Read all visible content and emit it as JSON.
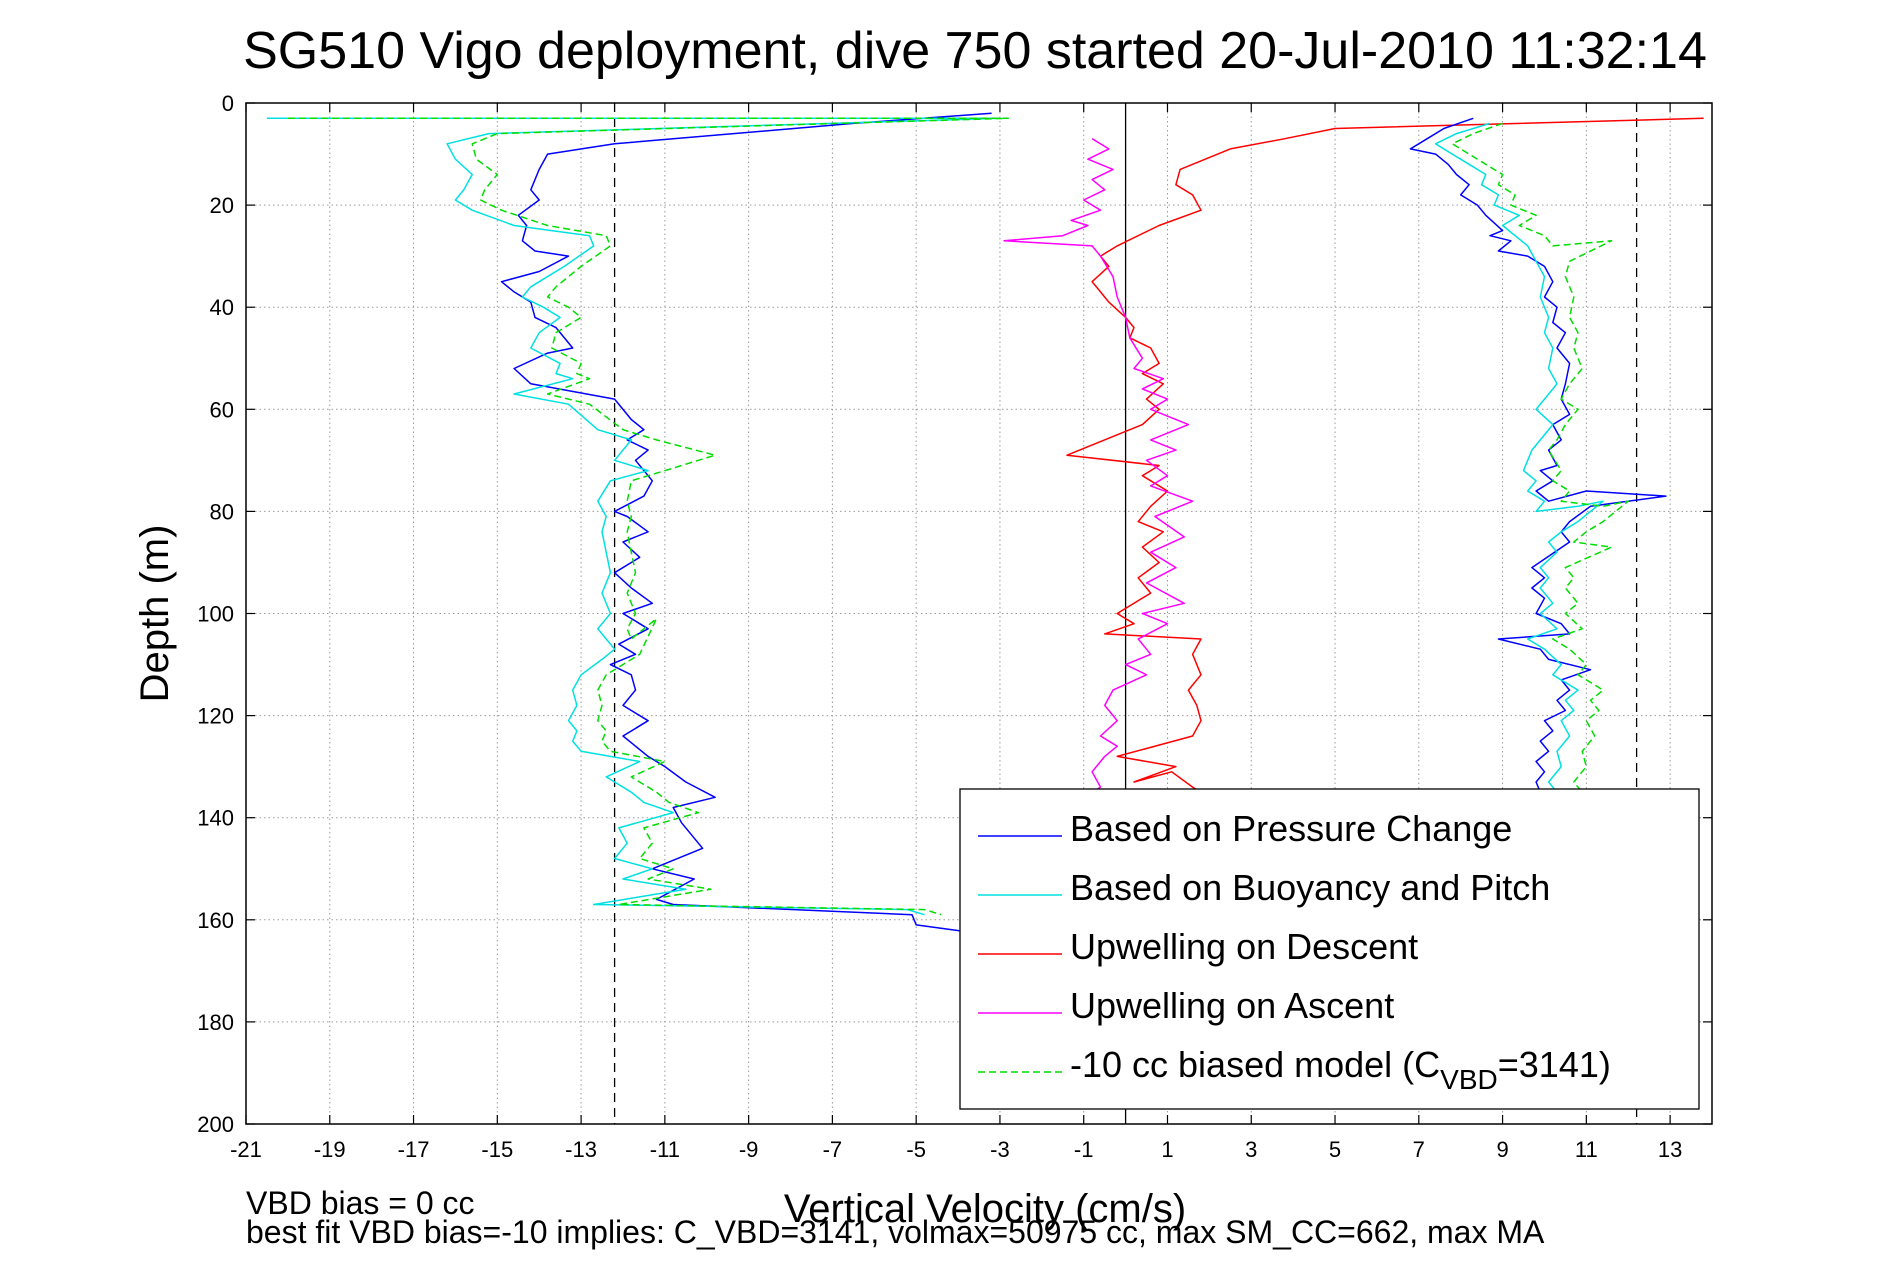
{
  "chart_data": {
    "type": "line",
    "title": "SG510 Vigo deployment, dive 750 started 20-Jul-2010 11:32:14",
    "xlabel": "Vertical Velocity (cm/s)",
    "ylabel": "Depth (m)",
    "xlim": [
      -21,
      14
    ],
    "ylim": [
      0,
      200
    ],
    "y_reversed": true,
    "xticks": [
      -21,
      -19,
      -17,
      -15,
      -13,
      -11,
      -9,
      -7,
      -5,
      -3,
      -1,
      1,
      3,
      5,
      7,
      9,
      11,
      13
    ],
    "yticks": [
      0,
      20,
      40,
      60,
      80,
      100,
      120,
      140,
      160,
      180,
      200
    ],
    "grid": true,
    "legend_position": "bottom-right",
    "reference_lines": [
      {
        "x": 0,
        "style": "solid",
        "color": "#000000"
      },
      {
        "x": -12.2,
        "style": "dashed",
        "color": "#000000"
      },
      {
        "x": 12.2,
        "style": "dashed",
        "color": "#000000"
      }
    ],
    "series": [
      {
        "name": "Based on Pressure Change",
        "color": "#0000ff",
        "dash": "solid",
        "x": [
          -3.2,
          -6.5,
          -12.2,
          -13.8,
          -14.0,
          -14.2,
          -14.0,
          -14.5,
          -14.3,
          -14.4,
          -14.1,
          -13.3,
          -14.0,
          -14.9,
          -14.6,
          -14.2,
          -14.1,
          -13.6,
          -13.2,
          -13.8,
          -14.6,
          -14.2,
          -12.2,
          -11.8,
          -11.5,
          -11.9,
          -11.4,
          -11.7,
          -11.3,
          -11.5,
          -12.2,
          -11.9,
          -11.4,
          -12.0,
          -11.6,
          -12.2,
          -11.8,
          -11.3,
          -12.0,
          -11.4,
          -12.1,
          -11.7,
          -12.3,
          -11.8,
          -11.7,
          -12.0,
          -11.4,
          -12.0,
          -11.4,
          -11.0,
          -10.5,
          -9.8,
          -10.8,
          -10.6,
          -10.1,
          -11.3,
          -10.3,
          -11.2,
          -10.8,
          -5.1,
          -5.0,
          -3.2
        ],
        "y": [
          2,
          4,
          8,
          10,
          13,
          17,
          19,
          22,
          24,
          27,
          29,
          30,
          33,
          35,
          37,
          39,
          42,
          44,
          48,
          49,
          52,
          55,
          58,
          62,
          64,
          66,
          68,
          70,
          74,
          77,
          80,
          81,
          84,
          86,
          89,
          92,
          95,
          98,
          100,
          103,
          106,
          108,
          110,
          112,
          115,
          118,
          121,
          124,
          128,
          130,
          133,
          136,
          138,
          141,
          146,
          150,
          152,
          156,
          157,
          159,
          161,
          163
        ]
      },
      {
        "name": "Based on Buoyancy and Pitch",
        "color": "#00e0e0",
        "dash": "solid",
        "x": [
          -20.5,
          -3.0,
          -15.2,
          -16.2,
          -16.0,
          -15.6,
          -15.8,
          -16.0,
          -15.6,
          -14.6,
          -12.8,
          -12.7,
          -13.4,
          -14.2,
          -14.4,
          -13.9,
          -13.5,
          -14.0,
          -14.2,
          -13.5,
          -13.6,
          -13.2,
          -14.6,
          -13.3,
          -12.6,
          -11.8,
          -12.2,
          -11.4,
          -12.3,
          -12.6,
          -12.4,
          -12.5,
          -12.4,
          -12.3,
          -12.5,
          -12.3,
          -12.6,
          -12.4,
          -12.2,
          -12.5,
          -13.0,
          -13.2,
          -13.1,
          -13.3,
          -13.1,
          -13.2,
          -13.0,
          -11.6,
          -12.4,
          -11.8,
          -11.5,
          -10.8,
          -12.1,
          -11.9,
          -12.2,
          -11.3,
          -12.0,
          -10.5,
          -12.7,
          -5.2,
          -4.8
        ],
        "y": [
          3,
          3,
          6,
          8,
          11,
          14,
          17,
          19,
          21,
          24,
          26,
          28,
          32,
          36,
          38,
          40,
          42,
          45,
          48,
          51,
          53,
          54,
          57,
          59,
          64,
          66,
          70,
          72,
          74,
          78,
          81,
          84,
          88,
          92,
          96,
          100,
          103,
          105,
          107,
          109,
          112,
          115,
          118,
          121,
          123,
          125,
          127,
          129,
          132,
          135,
          137,
          139,
          142,
          145,
          148,
          150,
          152,
          154,
          157,
          158,
          159
        ]
      },
      {
        "name": "Upwelling on Descent",
        "color": "#ff0000",
        "dash": "solid",
        "x": [
          13.8,
          5.0,
          3.8,
          2.5,
          1.3,
          1.2,
          1.6,
          1.8,
          0.8,
          -0.2,
          -0.6,
          -0.4,
          -0.8,
          -0.6,
          -0.4,
          0.0,
          0.2,
          0.1,
          0.6,
          0.8,
          0.4,
          0.9,
          0.5,
          0.8,
          0.4,
          -1.4,
          0.8,
          0.4,
          1.0,
          0.6,
          0.3,
          0.9,
          0.4,
          0.8,
          0.3,
          0.6,
          -0.2,
          0.2,
          -0.5,
          1.8,
          1.6,
          1.8,
          1.5,
          1.7,
          1.8,
          1.6,
          -0.2,
          1.2,
          0.2,
          1.1,
          1.6,
          2.0
        ],
        "y": [
          3,
          5,
          7,
          9,
          13,
          16,
          18,
          21,
          24,
          28,
          30,
          32,
          35,
          37,
          39,
          42,
          44,
          46,
          48,
          51,
          53,
          55,
          58,
          60,
          63,
          69,
          71,
          73,
          76,
          79,
          82,
          84,
          87,
          90,
          93,
          96,
          100,
          102,
          104,
          105,
          108,
          112,
          115,
          118,
          121,
          124,
          128,
          130,
          133,
          131,
          134,
          136
        ]
      },
      {
        "name": "Upwelling on Ascent",
        "color": "#ff00ff",
        "dash": "solid",
        "x": [
          -0.8,
          -0.4,
          -0.9,
          -0.3,
          -0.8,
          -0.5,
          -1.0,
          -0.6,
          -1.3,
          -0.9,
          -1.5,
          -2.9,
          -0.8,
          -0.6,
          -0.3,
          -0.2,
          0.0,
          0.1,
          0.4,
          0.2,
          0.9,
          0.4,
          1.0,
          0.6,
          1.5,
          0.6,
          1.2,
          0.5,
          1.0,
          0.6,
          1.6,
          0.7,
          1.4,
          0.6,
          1.2,
          0.5,
          1.4,
          0.4,
          1.0,
          0.3,
          0.6,
          0.0,
          0.5,
          -0.3,
          -0.5,
          -0.2,
          -0.6,
          -0.2,
          -0.5,
          -0.8,
          -0.6,
          -1.0
        ],
        "y": [
          7,
          9,
          11,
          13,
          15,
          17,
          19,
          21,
          23,
          24,
          26,
          27,
          28,
          30,
          34,
          38,
          42,
          46,
          50,
          52,
          54,
          56,
          58,
          60,
          63,
          66,
          68,
          70,
          73,
          75,
          78,
          81,
          85,
          88,
          91,
          94,
          98,
          100,
          102,
          105,
          108,
          110,
          112,
          115,
          118,
          121,
          124,
          126,
          128,
          131,
          134,
          136
        ]
      },
      {
        "name": "-10 cc biased model (C_VBD=3141)",
        "color": "#00dd00",
        "dash": "dashed",
        "x": [
          -20.0,
          -2.8,
          -15.0,
          -15.6,
          -15.5,
          -15.0,
          -15.3,
          -15.4,
          -14.9,
          -13.8,
          -12.4,
          -12.3,
          -13.0,
          -13.6,
          -13.8,
          -13.3,
          -13.0,
          -13.6,
          -13.7,
          -13.0,
          -13.1,
          -12.8,
          -13.8,
          -12.8,
          -12.0,
          -11.2,
          -9.8,
          -11.0,
          -11.8,
          -11.9,
          -11.8,
          -11.9,
          -11.8,
          -11.7,
          -11.9,
          -11.7,
          -11.9,
          -11.8,
          -11.2,
          -11.6,
          -12.4,
          -12.6,
          -12.5,
          -12.6,
          -12.4,
          -12.5,
          -12.3,
          -11.0,
          -11.8,
          -11.2,
          -10.9,
          -10.2,
          -11.5,
          -11.3,
          -11.6,
          -10.8,
          -11.4,
          -9.9,
          -12.1,
          -4.8,
          -4.4
        ],
        "y": [
          3,
          3,
          6,
          8,
          11,
          14,
          17,
          19,
          21,
          24,
          26,
          28,
          32,
          36,
          38,
          40,
          42,
          45,
          48,
          51,
          53,
          54,
          57,
          59,
          64,
          66,
          69,
          72,
          74,
          78,
          81,
          84,
          88,
          92,
          96,
          100,
          103,
          105,
          101,
          108,
          112,
          115,
          118,
          121,
          123,
          125,
          127,
          129,
          132,
          135,
          137,
          139,
          142,
          145,
          148,
          150,
          152,
          154,
          157,
          158,
          159
        ]
      },
      {
        "name": "",
        "color": "#0000ff",
        "dash": "solid",
        "x": [
          8.3,
          7.6,
          7.2,
          6.8,
          7.4,
          7.7,
          7.9,
          8.2,
          8.0,
          8.4,
          8.6,
          9.0,
          8.7,
          9.2,
          8.9,
          9.6,
          10.0,
          10.2,
          10.0,
          10.3,
          10.2,
          10.5,
          10.3,
          10.6,
          10.5,
          10.4,
          10.6,
          10.2,
          10.4,
          10.1,
          10.3,
          9.9,
          10.2,
          9.8,
          10.1,
          11.0,
          12.9,
          11.1,
          10.6,
          10.4,
          10.6,
          9.7,
          10.0,
          9.7,
          10.0,
          9.8,
          10.4,
          10.6,
          8.9,
          9.9,
          10.1,
          11.1,
          10.4,
          10.6,
          10.3,
          10.5,
          10.0,
          10.2,
          9.9,
          10.1,
          9.8,
          10.0,
          9.8,
          9.9,
          9.6
        ],
        "y": [
          3,
          5,
          7,
          9,
          10,
          12,
          14,
          16,
          18,
          20,
          22,
          25,
          26,
          27,
          29,
          30,
          32,
          35,
          38,
          40,
          43,
          45,
          48,
          51,
          55,
          58,
          61,
          63,
          66,
          68,
          71,
          72,
          74,
          76,
          78,
          76,
          77,
          79,
          82,
          84,
          86,
          91,
          93,
          95,
          97,
          100,
          102,
          104,
          105,
          107,
          109,
          111,
          113,
          115,
          117,
          119,
          121,
          123,
          125,
          127,
          129,
          131,
          133,
          135,
          137
        ]
      },
      {
        "name": "",
        "color": "#00e0e0",
        "dash": "solid",
        "x": [
          8.7,
          7.9,
          7.4,
          7.8,
          8.2,
          8.6,
          8.5,
          8.9,
          8.8,
          9.4,
          9.0,
          9.6,
          9.8,
          10.0,
          9.9,
          10.1,
          10.0,
          10.2,
          10.1,
          10.3,
          10.0,
          9.8,
          10.2,
          9.9,
          9.7,
          9.5,
          9.8,
          9.6,
          10.0,
          9.8,
          10.8,
          11.4,
          10.8,
          10.4,
          10.1,
          10.3,
          9.9,
          10.1,
          9.9,
          10.2,
          9.9,
          10.3,
          9.6,
          10.0,
          10.4,
          10.2,
          10.8,
          10.5,
          10.7,
          10.4,
          10.6,
          10.3,
          10.4,
          10.1,
          10.3,
          10.0
        ],
        "y": [
          4,
          6,
          8,
          10,
          12,
          14,
          16,
          18,
          20,
          22,
          24,
          28,
          31,
          34,
          38,
          42,
          45,
          48,
          52,
          55,
          58,
          60,
          63,
          66,
          68,
          72,
          74,
          76,
          78,
          80,
          79,
          78,
          82,
          84,
          86,
          88,
          91,
          93,
          95,
          98,
          100,
          103,
          105,
          107,
          110,
          112,
          115,
          117,
          119,
          121,
          124,
          127,
          130,
          133,
          135,
          137
        ]
      },
      {
        "name": "",
        "color": "#00dd00",
        "dash": "dashed",
        "x": [
          9.0,
          8.3,
          7.8,
          8.2,
          8.6,
          9.0,
          8.9,
          9.3,
          9.2,
          9.8,
          9.4,
          10.0,
          10.2,
          11.6,
          10.6,
          10.5,
          10.7,
          10.6,
          10.8,
          10.7,
          10.9,
          10.6,
          10.4,
          10.8,
          10.5,
          10.3,
          10.1,
          10.4,
          10.2,
          10.6,
          10.4,
          11.4,
          12.0,
          11.4,
          11.0,
          10.7,
          11.6,
          10.5,
          10.7,
          10.5,
          10.8,
          10.5,
          10.9,
          10.2,
          10.6,
          11.0,
          10.8,
          11.4,
          11.1,
          11.3,
          11.0,
          11.2,
          10.9,
          11.0,
          10.7,
          10.9,
          10.6
        ],
        "y": [
          4,
          6,
          8,
          10,
          12,
          14,
          16,
          18,
          20,
          22,
          24,
          26,
          28,
          27,
          31,
          34,
          38,
          42,
          45,
          48,
          52,
          55,
          58,
          60,
          63,
          66,
          68,
          72,
          74,
          76,
          78,
          79,
          78,
          82,
          84,
          86,
          87,
          91,
          93,
          95,
          98,
          100,
          103,
          105,
          107,
          110,
          112,
          115,
          117,
          119,
          121,
          124,
          127,
          130,
          133,
          135,
          137
        ]
      }
    ],
    "annotations": [
      "VBD bias = 0 cc",
      "best fit VBD bias=-10 implies: C_VBD=3141, volmax=50975 cc, max SM_CC=662, max MA"
    ]
  },
  "legend": {
    "items": [
      {
        "label": "Based on Pressure Change",
        "color": "#0000ff",
        "dash": "solid"
      },
      {
        "label": "Based on Buoyancy and Pitch",
        "color": "#00e0e0",
        "dash": "solid"
      },
      {
        "label": "Upwelling on Descent",
        "color": "#ff0000",
        "dash": "solid"
      },
      {
        "label": "Upwelling on Ascent",
        "color": "#ff00ff",
        "dash": "solid"
      },
      {
        "label": "-10 cc biased model (C",
        "sub": "VBD",
        "suffix": "=3141)",
        "color": "#00dd00",
        "dash": "dashed"
      }
    ]
  }
}
